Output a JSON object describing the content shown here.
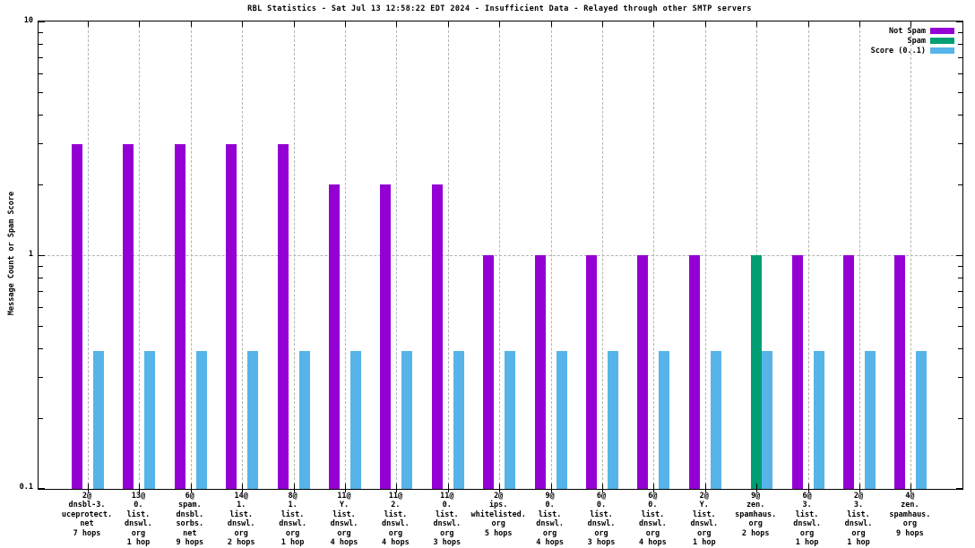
{
  "chart_data": {
    "type": "bar",
    "title": "RBL Statistics - Sat Jul 13 12:58:22 EDT 2024 - Insufficient Data - Relayed through other SMTP servers",
    "ylabel": "Message Count or Spam Score",
    "xlabel": "",
    "yscale": "log",
    "ylim": [
      0.1,
      10
    ],
    "grid": true,
    "legend_position": "top-right-inside",
    "yticks": [
      {
        "label": "10",
        "value": 10
      },
      {
        "label": "1",
        "value": 1
      },
      {
        "label": "0.1",
        "value": 0.1
      }
    ],
    "legend": [
      {
        "label": "Not Spam",
        "color": "#9400D3"
      },
      {
        "label": "Spam",
        "color": "#009E73"
      },
      {
        "label": "Score (0..1)",
        "color": "#56B4E9"
      }
    ],
    "categories": [
      [
        "2@",
        "dnsbl-3.",
        "uceprotect.",
        "net",
        "7 hops"
      ],
      [
        "13@",
        "0.",
        "list.",
        "dnswl.",
        "org",
        "1 hop"
      ],
      [
        "6@",
        "spam.",
        "dnsbl.",
        "sorbs.",
        "net",
        "9 hops"
      ],
      [
        "14@",
        "1.",
        "list.",
        "dnswl.",
        "org",
        "2 hops"
      ],
      [
        "8@",
        "1.",
        "list.",
        "dnswl.",
        "org",
        "1 hop"
      ],
      [
        "11@",
        "Y.",
        "list.",
        "dnswl.",
        "org",
        "4 hops"
      ],
      [
        "11@",
        "2.",
        "list.",
        "dnswl.",
        "org",
        "4 hops"
      ],
      [
        "11@",
        "0.",
        "list.",
        "dnswl.",
        "org",
        "3 hops"
      ],
      [
        "2@",
        "ips.",
        "whitelisted.",
        "org",
        "5 hops"
      ],
      [
        "9@",
        "0.",
        "list.",
        "dnswl.",
        "org",
        "4 hops"
      ],
      [
        "6@",
        "0.",
        "list.",
        "dnswl.",
        "org",
        "3 hops"
      ],
      [
        "6@",
        "0.",
        "list.",
        "dnswl.",
        "org",
        "4 hops"
      ],
      [
        "2@",
        "Y.",
        "list.",
        "dnswl.",
        "org",
        "1 hop"
      ],
      [
        "9@",
        "zen.",
        "spamhaus.",
        "org",
        "2 hops"
      ],
      [
        "6@",
        "3.",
        "list.",
        "dnswl.",
        "org",
        "1 hop"
      ],
      [
        "2@",
        "3.",
        "list.",
        "dnswl.",
        "org",
        "1 hop"
      ],
      [
        "4@",
        "zen.",
        "spamhaus.",
        "org",
        "9 hops"
      ]
    ],
    "series": [
      {
        "name": "Not Spam",
        "values": [
          3,
          3,
          3,
          3,
          3,
          2,
          2,
          2,
          1,
          1,
          1,
          1,
          1,
          0,
          1,
          1,
          1
        ]
      },
      {
        "name": "Spam",
        "values": [
          0,
          0,
          0,
          0,
          0,
          0,
          0,
          0,
          0,
          0,
          0,
          0,
          0,
          1,
          0,
          0,
          0
        ]
      },
      {
        "name": "Score (0..1)",
        "values": [
          0.39,
          0.39,
          0.39,
          0.39,
          0.39,
          0.39,
          0.39,
          0.39,
          0.39,
          0.39,
          0.39,
          0.39,
          0.39,
          0.39,
          0.39,
          0.39,
          0.39
        ]
      }
    ],
    "colors": {
      "not_spam": "#9400D3",
      "spam": "#009E73",
      "score": "#56B4E9",
      "grid": "#B3B3B3",
      "axis": "#000000",
      "background": "#FFFFFF"
    }
  }
}
